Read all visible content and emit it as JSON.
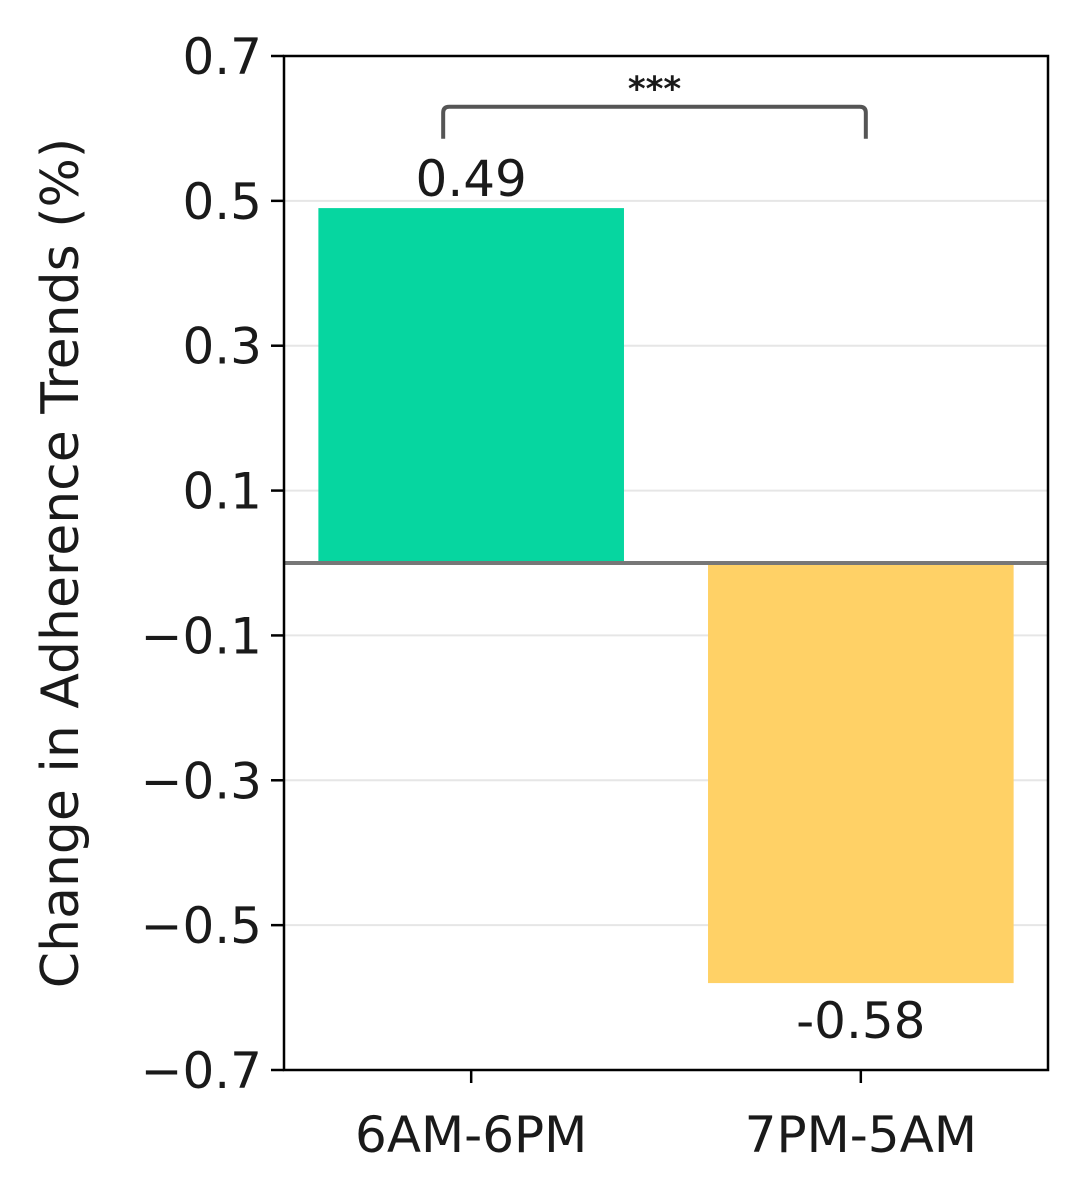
{
  "chart_data": {
    "type": "bar",
    "title": "",
    "xlabel": "",
    "ylabel": "Change in Adherence Trends (%)",
    "categories": [
      "6AM-6PM",
      "7PM-5AM"
    ],
    "values": [
      0.49,
      -0.58
    ],
    "value_labels": [
      "0.49",
      "-0.58"
    ],
    "colors": [
      "#06d6a0",
      "#ffd166"
    ],
    "ylim": [
      -0.7,
      0.7
    ],
    "yticks": [
      -0.7,
      -0.5,
      -0.3,
      -0.1,
      0.1,
      0.3,
      0.5,
      0.7
    ],
    "ytick_labels": [
      "−0.7",
      "−0.5",
      "−0.3",
      "−0.1",
      "0.1",
      "0.3",
      "0.5",
      "0.7"
    ],
    "grid": "horizontal",
    "zero_line": true,
    "significance": {
      "label": "***",
      "between": [
        "6AM-6PM",
        "7PM-5AM"
      ],
      "level": 0.63
    }
  }
}
